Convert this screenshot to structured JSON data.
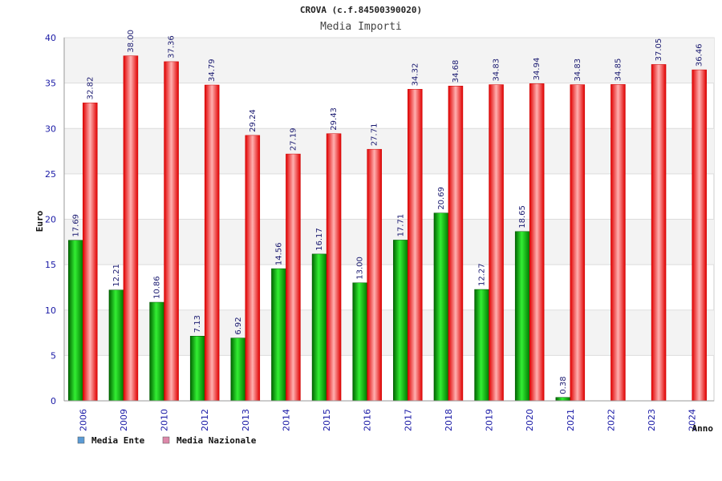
{
  "chart_data": {
    "type": "bar",
    "title": "CROVA (c.f.84500390020)",
    "subtitle": "Media Importi",
    "xlabel": "Anno",
    "ylabel": "Euro",
    "ylim": [
      0,
      40
    ],
    "yticks": [
      0,
      5,
      10,
      15,
      20,
      25,
      30,
      35,
      40
    ],
    "grid": true,
    "legend_position": "bottom-left",
    "categories": [
      "2006",
      "2009",
      "2010",
      "2012",
      "2013",
      "2014",
      "2015",
      "2016",
      "2017",
      "2018",
      "2019",
      "2020",
      "2021",
      "2022",
      "2023",
      "2024"
    ],
    "series": [
      {
        "name": "Media Ente",
        "color": "#00aa00",
        "legend_color": "#5b9bd5",
        "values": [
          17.69,
          12.21,
          10.86,
          7.13,
          6.92,
          14.56,
          16.17,
          13.0,
          17.71,
          20.69,
          12.27,
          18.65,
          0.38,
          null,
          null,
          null
        ],
        "labels": [
          "17.69",
          "12.21",
          "10.86",
          "7.13",
          "6.92",
          "14.56",
          "16.17",
          "13.00",
          "17.71",
          "20.69",
          "12.27",
          "18.65",
          "0.38",
          "",
          "",
          ""
        ]
      },
      {
        "name": "Media Nazionale",
        "color": "#ee1111",
        "legend_color": "#dd88aa",
        "values": [
          32.82,
          38.0,
          37.36,
          34.79,
          29.24,
          27.19,
          29.43,
          27.71,
          34.32,
          34.68,
          34.83,
          34.94,
          34.83,
          34.85,
          37.05,
          36.46
        ],
        "labels": [
          "32.82",
          "38.00",
          "37.36",
          "34.79",
          "29.24",
          "27.19",
          "29.43",
          "27.71",
          "34.32",
          "34.68",
          "34.83",
          "34.94",
          "34.83",
          "34.85",
          "37.05",
          "36.46"
        ]
      }
    ]
  }
}
